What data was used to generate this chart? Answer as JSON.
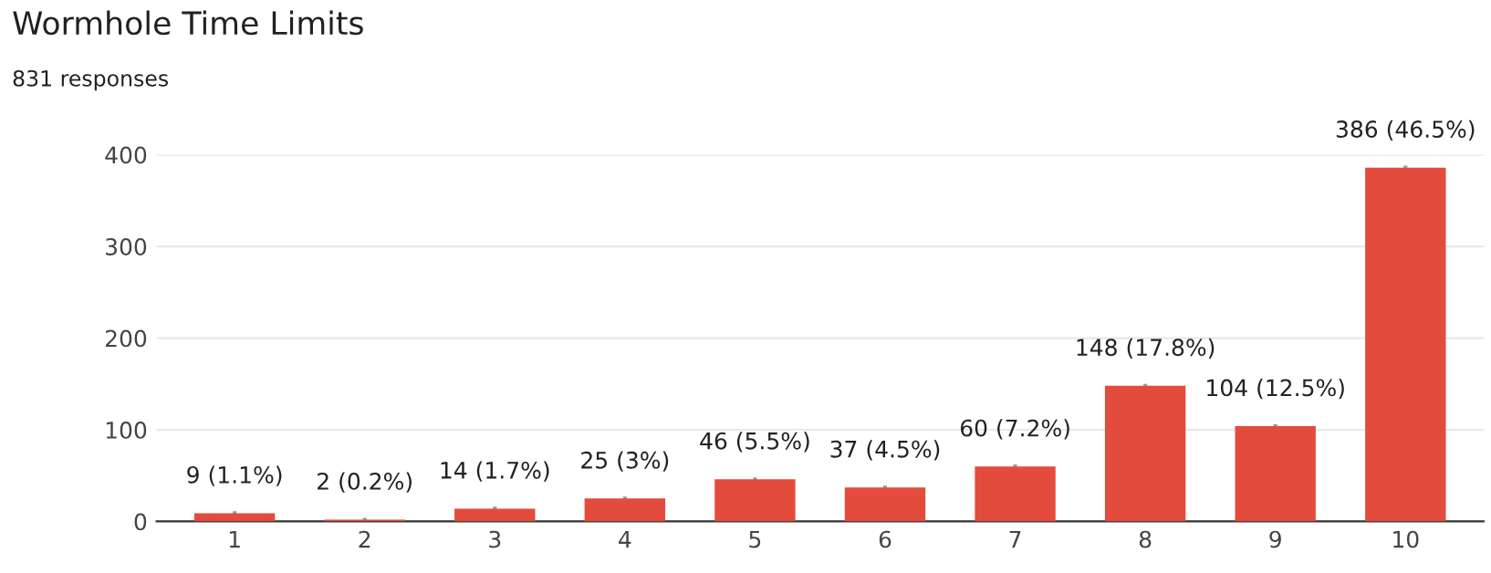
{
  "chart_data": {
    "type": "bar",
    "title": "Wormhole Time Limits",
    "subtitle": "831 responses",
    "categories": [
      "1",
      "2",
      "3",
      "4",
      "5",
      "6",
      "7",
      "8",
      "9",
      "10"
    ],
    "values": [
      9,
      2,
      14,
      25,
      46,
      37,
      60,
      148,
      104,
      386
    ],
    "value_labels": [
      "9 (1.1%)",
      "2 (0.2%)",
      "14 (1.7%)",
      "25 (3%)",
      "46 (5.5%)",
      "37 (4.5%)",
      "60 (7.2%)",
      "148 (17.8%)",
      "104 (12.5%)",
      "386 (46.5%)"
    ],
    "color": "#e34c3c",
    "ylim": [
      0,
      400
    ],
    "yticks": [
      0,
      100,
      200,
      300,
      400
    ],
    "grid": "y"
  }
}
